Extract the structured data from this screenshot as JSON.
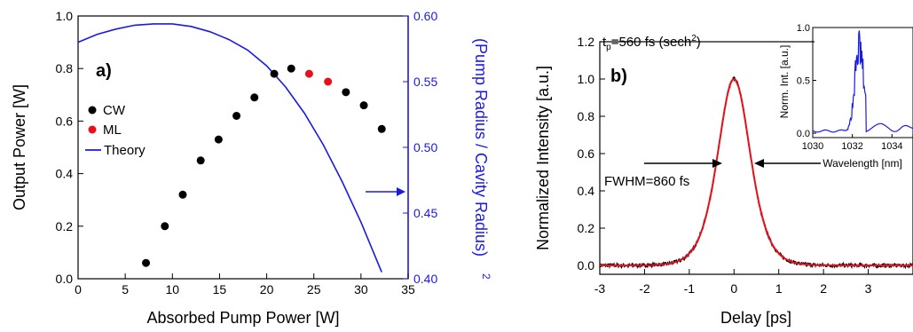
{
  "chart_data": [
    {
      "type": "scatter",
      "panel_label": "a)",
      "xlabel": "Absorbed Pump Power  [W]",
      "ylabel": "Output Power  [W]",
      "y2label": "(Pump Radius / Cavity Radius)",
      "y2label_exp": "2",
      "xlim": [
        0,
        35
      ],
      "ylim": [
        0,
        1.0
      ],
      "y2lim": [
        0.4,
        0.6
      ],
      "xticks": [
        "0",
        "5",
        "10",
        "15",
        "20",
        "25",
        "30",
        "35"
      ],
      "yticks": [
        "0.0",
        "0.2",
        "0.4",
        "0.6",
        "0.8",
        "1.0"
      ],
      "y2ticks": [
        "0.40",
        "0.45",
        "0.50",
        "0.55",
        "0.60"
      ],
      "legend": [
        "CW",
        "ML",
        "Theory"
      ],
      "series": [
        {
          "name": "CW",
          "color": "#000000",
          "x": [
            7.2,
            9.2,
            11.1,
            13.0,
            14.9,
            16.8,
            18.7,
            20.8,
            22.6,
            28.4,
            30.3,
            32.2
          ],
          "y": [
            0.06,
            0.2,
            0.32,
            0.45,
            0.53,
            0.62,
            0.69,
            0.78,
            0.8,
            0.71,
            0.66,
            0.57
          ]
        },
        {
          "name": "ML",
          "color": "#e8101a",
          "x": [
            24.5,
            26.5
          ],
          "y": [
            0.78,
            0.75
          ]
        },
        {
          "name": "Theory",
          "color": "#1a1ae6",
          "axis": "right",
          "x": [
            0,
            2,
            4,
            6,
            8,
            10,
            12,
            14,
            16,
            18,
            20,
            22,
            24,
            26,
            28,
            30,
            32.2
          ],
          "y": [
            0.58,
            0.586,
            0.59,
            0.593,
            0.594,
            0.594,
            0.592,
            0.588,
            0.582,
            0.574,
            0.562,
            0.546,
            0.526,
            0.502,
            0.474,
            0.443,
            0.405
          ]
        }
      ],
      "annotation": "arrow pointing to right axis"
    },
    {
      "type": "line",
      "panel_label": "b)",
      "xlabel": "Delay  [ps]",
      "ylabel": "Normalized Intensity  [a.u.]",
      "xlim": [
        -3,
        4
      ],
      "ylim": [
        -0.05,
        1.2
      ],
      "xticks": [
        "-3",
        "-2",
        "-1",
        "0",
        "1",
        "2",
        "3"
      ],
      "yticks": [
        "0.0",
        "0.2",
        "0.4",
        "0.6",
        "0.8",
        "1.0",
        "1.2"
      ],
      "pulse_label_base": "t",
      "pulse_label_sub": "p",
      "pulse_label_rest": "=560 fs (sech",
      "pulse_label_sup": "2",
      "pulse_label_close": ")",
      "fwhm_label": "FWHM=860 fs",
      "fwhm_ps": 0.86,
      "series": [
        {
          "name": "measured",
          "color": "#000000"
        },
        {
          "name": "sech2 fit",
          "color": "#e8101a"
        }
      ],
      "inset": {
        "type": "line",
        "xlabel": "Wavelength  [nm]",
        "ylabel": "Norm. Int.  [a.u.]",
        "xlim": [
          1030,
          1036
        ],
        "ylim": [
          0,
          1.0
        ],
        "xticks": [
          "1030",
          "1032",
          "1034"
        ],
        "yticks": [
          "0.0",
          "0.5",
          "1.0"
        ],
        "color": "#1a1ae6"
      }
    }
  ]
}
